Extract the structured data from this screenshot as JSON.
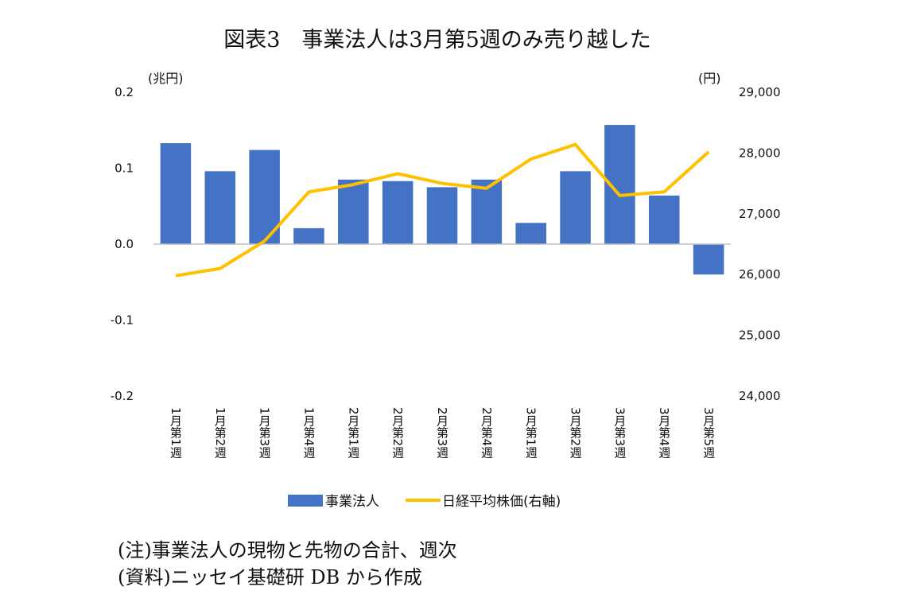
{
  "title": "図表3　事業法人は3月第5週のみ売り越した",
  "notes": {
    "note": "(注)事業法人の現物と先物の合計、週次",
    "source": "(資料)ニッセイ基礎研 DB から作成"
  },
  "colors": {
    "bar": "#4472C4",
    "line": "#FFC000",
    "axis": "#BFBFBF"
  },
  "chart_data": {
    "type": "bar",
    "categories": [
      "1月第1週",
      "1月第2週",
      "1月第3週",
      "1月第4週",
      "2月第1週",
      "2月第2週",
      "2月第3週",
      "2月第4週",
      "3月第1週",
      "3月第2週",
      "3月第3週",
      "3月第4週",
      "3月第5週"
    ],
    "left_axis": {
      "unit_label": "(兆円)",
      "range": [
        -0.2,
        0.2
      ],
      "ticks": [
        "0.2",
        "0.1",
        "0.0",
        "-0.1",
        "-0.2"
      ]
    },
    "right_axis": {
      "unit_label": "(円)",
      "range": [
        24000,
        29000
      ],
      "ticks": [
        "29,000",
        "28,000",
        "27,000",
        "26,000",
        "25,000",
        "24,000"
      ]
    },
    "series": [
      {
        "name": "事業法人",
        "type": "bar",
        "axis": "left",
        "values": [
          0.133,
          0.096,
          0.124,
          0.021,
          0.085,
          0.083,
          0.075,
          0.085,
          0.028,
          0.096,
          0.157,
          0.064,
          -0.04
        ]
      },
      {
        "name": "日経平均株価(右軸)",
        "type": "line",
        "axis": "right",
        "values": [
          25980,
          26100,
          26550,
          27360,
          27480,
          27660,
          27500,
          27420,
          27900,
          28140,
          27300,
          27360,
          28020
        ]
      }
    ],
    "legend_position": "bottom",
    "grid": false
  }
}
